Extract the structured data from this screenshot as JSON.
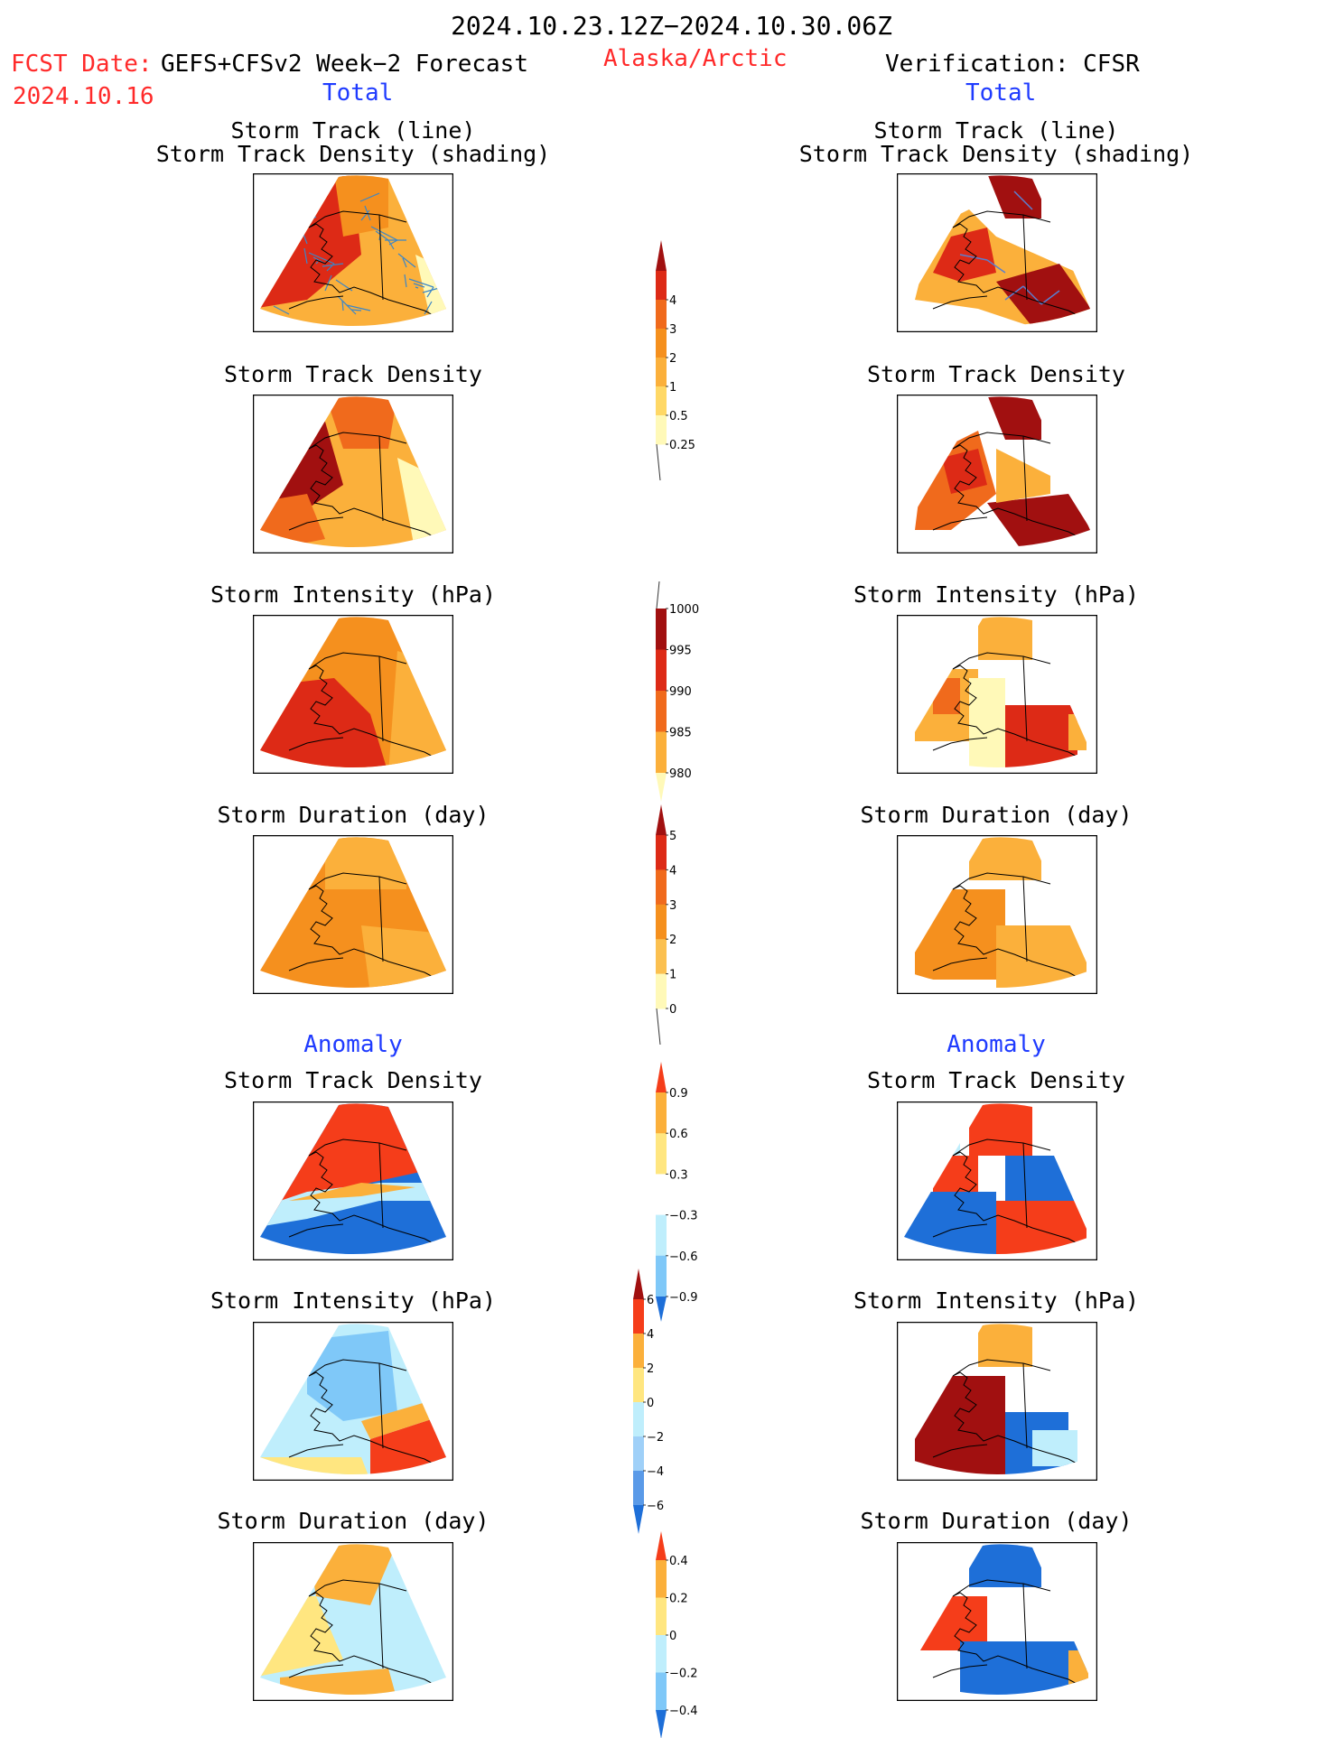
{
  "header": {
    "period": "2024.10.23.12Z−2024.10.30.06Z",
    "fcst_label": "FCST Date:",
    "fcst_model": "GEFS+CFSv2 Week−2 Forecast",
    "fcst_date": "2024.10.16",
    "region": "Alaska/Arctic",
    "verification": "Verification: CFSR",
    "left_total": "Total",
    "right_total": "Total",
    "left_anomaly": "Anomaly",
    "right_anomaly": "Anomaly"
  },
  "panels": {
    "track_title_1": "Storm Track (line)",
    "track_title_2": "Storm Track Density (shading)",
    "density": "Storm Track Density",
    "intensity": "Storm Intensity (hPa)",
    "duration": "Storm Duration (day)"
  },
  "chart_data": [
    {
      "type": "heatmap",
      "name": "density-colorbar",
      "levels": [
        "0.25",
        "0.5",
        "1",
        "2",
        "3",
        "4"
      ],
      "colors": [
        "#fff9b8",
        "#ffd866",
        "#fbb03b",
        "#f5901e",
        "#f06a1c",
        "#dd2a16",
        "#a11010"
      ]
    },
    {
      "type": "heatmap",
      "name": "intensity-colorbar",
      "levels": [
        "1000",
        "995",
        "990",
        "985",
        "980"
      ],
      "colors": [
        "#fff9b8",
        "#fbb03b",
        "#f06a1c",
        "#dd2a16",
        "#a11010"
      ]
    },
    {
      "type": "heatmap",
      "name": "duration-colorbar",
      "levels": [
        "0",
        "1",
        "2",
        "3",
        "4",
        "5"
      ],
      "colors": [
        "#fff9b8",
        "#fbc050",
        "#f5901e",
        "#f06a1c",
        "#dd2a16",
        "#a11010"
      ]
    },
    {
      "type": "heatmap",
      "name": "density-anomaly-colorbar",
      "levels": [
        "0.9",
        "0.6",
        "0.3",
        "−0.3",
        "−0.6",
        "−0.9"
      ],
      "colors": [
        "#f53d1a",
        "#fbb03b",
        "#ffe680",
        "#ffffff",
        "#bfeefc",
        "#7fc8f8",
        "#1e6fd8"
      ]
    },
    {
      "type": "heatmap",
      "name": "intensity-anomaly-colorbar",
      "levels": [
        "6",
        "4",
        "2",
        "0",
        "−2",
        "−4",
        "−6"
      ],
      "colors": [
        "#a11010",
        "#f53d1a",
        "#fbb03b",
        "#ffe680",
        "#bfeefc",
        "#9fd0f8",
        "#5a9ae8",
        "#1e6fd8"
      ]
    },
    {
      "type": "heatmap",
      "name": "duration-anomaly-colorbar",
      "levels": [
        "0.4",
        "0.2",
        "0",
        "−0.2",
        "−0.4"
      ],
      "colors": [
        "#f53d1a",
        "#fbb03b",
        "#ffe680",
        "#bfeefc",
        "#7fc8f8",
        "#1e6fd8"
      ]
    }
  ]
}
